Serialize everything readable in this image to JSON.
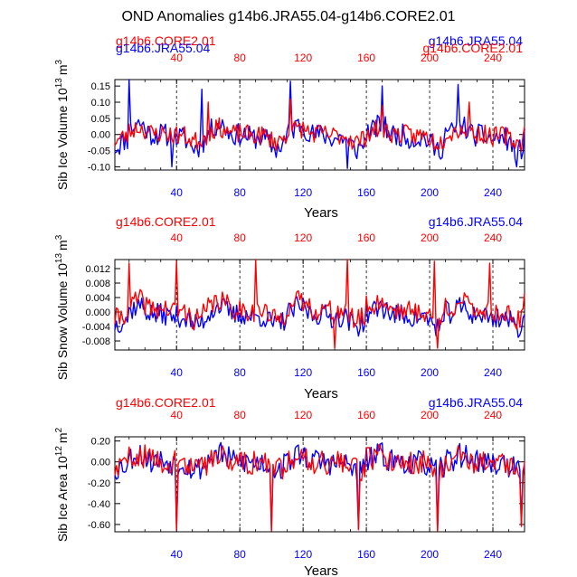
{
  "title": "OND Anomalies g14b6.JRA55.04-g14b6.CORE2.01",
  "colors": {
    "red": "#ff0000",
    "blue": "#0000ff",
    "black": "#000000"
  },
  "chart_data": [
    {
      "type": "line",
      "ylabel": "Sib Ice Volume 10",
      "ylabel_exp": "13",
      "ylabel_unit": "m",
      "ylabel_unit_exp": "3",
      "xlabel": "Years",
      "top_left_label": "g14b6.CORE2.01",
      "top_right_label": "g14b6.JRA55.04",
      "overlap_left_label": "g14b6.JRA55.04",
      "overlap_right_label": "g14b6.CORE2.01",
      "xlim": [
        1,
        260
      ],
      "ylim": [
        -0.11,
        0.17
      ],
      "xticks": [
        40,
        80,
        120,
        160,
        200,
        240
      ],
      "yticks": [
        -0.1,
        -0.05,
        0.0,
        0.05,
        0.1,
        0.15
      ],
      "ytick_labels": [
        "-0.10",
        "-0.05",
        "0.00",
        "0.05",
        "0.10",
        "0.15"
      ],
      "series": [
        {
          "name": "g14b6.JRA55.04",
          "color": "#0000ff",
          "amp": 0.1,
          "base": -0.005,
          "noise": 0.035,
          "seed": 11,
          "min": -0.105,
          "max": 0.17,
          "spikes": [
            [
              10,
              0.17
            ],
            [
              112,
              0.165
            ],
            [
              56,
              0.14
            ],
            [
              170,
              0.15
            ],
            [
              218,
              0.155
            ],
            [
              37,
              -0.1
            ],
            [
              148,
              -0.105
            ],
            [
              255,
              -0.1
            ]
          ]
        },
        {
          "name": "g14b6.CORE2.01",
          "color": "#ff0000",
          "amp": 0.055,
          "base": 0.0,
          "noise": 0.03,
          "seed": 23,
          "min": -0.09,
          "max": 0.11,
          "spikes": [
            [
              112,
              0.11
            ],
            [
              60,
              0.1
            ],
            [
              170,
              0.09
            ],
            [
              225,
              0.1
            ]
          ]
        }
      ]
    },
    {
      "type": "line",
      "ylabel": "Sib Snow Volume 10",
      "ylabel_exp": "13",
      "ylabel_unit": "m",
      "ylabel_unit_exp": "3",
      "xlabel": "Years",
      "top_left_label": "g14b6.CORE2.01",
      "top_right_label": "g14b6.JRA55.04",
      "xlim": [
        1,
        260
      ],
      "ylim": [
        -0.0105,
        0.0145
      ],
      "xticks": [
        40,
        80,
        120,
        160,
        200,
        240
      ],
      "yticks": [
        -0.008,
        -0.004,
        0.0,
        0.004,
        0.008,
        0.012
      ],
      "ytick_labels": [
        "-0.008",
        "-0.004",
        "0.000",
        "0.004",
        "0.008",
        "0.012"
      ],
      "series": [
        {
          "name": "g14b6.JRA55.04",
          "color": "#0000ff",
          "amp": 0.007,
          "base": -0.001,
          "noise": 0.003,
          "seed": 37,
          "min": -0.0105,
          "max": 0.013,
          "spikes": []
        },
        {
          "name": "g14b6.CORE2.01",
          "color": "#ff0000",
          "amp": 0.007,
          "base": 0.0005,
          "noise": 0.003,
          "seed": 41,
          "min": -0.0105,
          "max": 0.0145,
          "spikes": [
            [
              10,
              0.0135
            ],
            [
              40,
              0.014
            ],
            [
              90,
              0.0145
            ],
            [
              148,
              0.0145
            ],
            [
              203,
              0.014
            ],
            [
              238,
              0.0135
            ],
            [
              140,
              -0.01
            ],
            [
              205,
              -0.01
            ]
          ]
        }
      ]
    },
    {
      "type": "line",
      "ylabel": "Sib Ice Area 10",
      "ylabel_exp": "12",
      "ylabel_unit": "m",
      "ylabel_unit_exp": "2",
      "xlabel": "Years",
      "top_left_label": "g14b6.CORE2.01",
      "top_right_label": "g14b6.JRA55.04",
      "xlim": [
        1,
        260
      ],
      "ylim": [
        -0.67,
        0.24
      ],
      "xticks": [
        40,
        80,
        120,
        160,
        200,
        240
      ],
      "yticks": [
        -0.6,
        -0.4,
        -0.2,
        0.0,
        0.2
      ],
      "ytick_labels": [
        "-0.60",
        "-0.40",
        "-0.20",
        "0.00",
        "0.20"
      ],
      "series": [
        {
          "name": "g14b6.JRA55.04",
          "color": "#0000ff",
          "amp": 0.2,
          "base": 0.0,
          "noise": 0.12,
          "seed": 53,
          "min": -0.66,
          "max": 0.22,
          "spikes": [
            [
              40,
              -0.64
            ],
            [
              100,
              -0.66
            ],
            [
              155,
              -0.64
            ],
            [
              205,
              -0.66
            ],
            [
              258,
              -0.6
            ]
          ]
        },
        {
          "name": "g14b6.CORE2.01",
          "color": "#ff0000",
          "amp": 0.2,
          "base": 0.0,
          "noise": 0.12,
          "seed": 59,
          "min": -0.66,
          "max": 0.22,
          "spikes": [
            [
              40,
              -0.65
            ],
            [
              100,
              -0.665
            ],
            [
              155,
              -0.65
            ],
            [
              205,
              -0.665
            ],
            [
              258,
              -0.62
            ]
          ]
        }
      ]
    }
  ]
}
